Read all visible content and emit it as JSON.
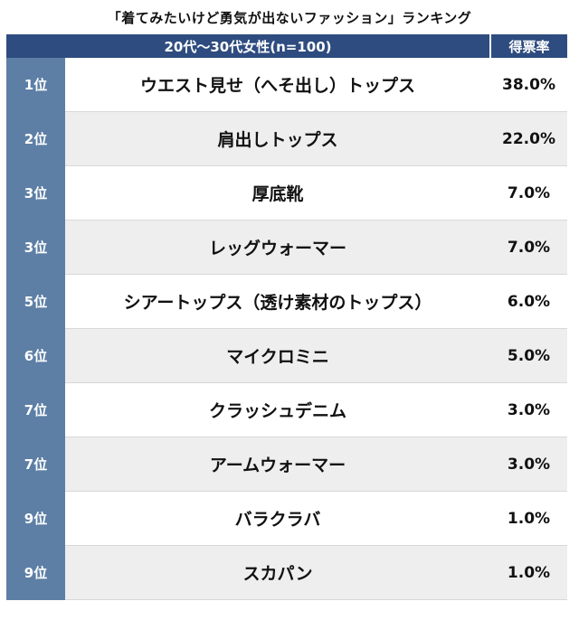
{
  "chart_data": {
    "type": "table",
    "title": "「着てみたいけど勇気が出ないファッション」ランキング",
    "header": {
      "group_label": "20代〜30代女性(n=100)",
      "rate_label": "得票率"
    },
    "rows": [
      {
        "rank": "1位",
        "item": "ウエスト見せ（へそ出し）トップス",
        "rate": "38.0%"
      },
      {
        "rank": "2位",
        "item": "肩出しトップス",
        "rate": "22.0%"
      },
      {
        "rank": "3位",
        "item": "厚底靴",
        "rate": "7.0%"
      },
      {
        "rank": "3位",
        "item": "レッグウォーマー",
        "rate": "7.0%"
      },
      {
        "rank": "5位",
        "item": "シアートップス（透け素材のトップス）",
        "rate": "6.0%"
      },
      {
        "rank": "6位",
        "item": "マイクロミニ",
        "rate": "5.0%"
      },
      {
        "rank": "7位",
        "item": "クラッシュデニム",
        "rate": "3.0%"
      },
      {
        "rank": "7位",
        "item": "アームウォーマー",
        "rate": "3.0%"
      },
      {
        "rank": "9位",
        "item": "バラクラバ",
        "rate": "1.0%"
      },
      {
        "rank": "9位",
        "item": "スカパン",
        "rate": "1.0%"
      }
    ],
    "values": [
      38.0,
      22.0,
      7.0,
      7.0,
      6.0,
      5.0,
      3.0,
      3.0,
      1.0,
      1.0
    ],
    "colors": {
      "header": "#2e4c7f",
      "rank_column": "#5d7fa5",
      "stripe": "#eeeeee"
    }
  }
}
